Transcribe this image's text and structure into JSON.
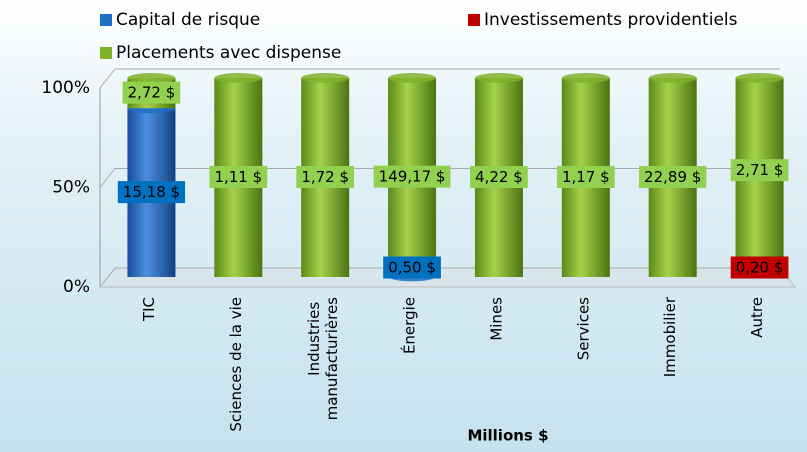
{
  "chart_data": {
    "type": "stacked_percent_bar",
    "x_axis_label": "Millions $",
    "categories": [
      "TIC",
      "Sciences de la vie",
      "Industries manufacturières",
      "Énergie",
      "Mines",
      "Services",
      "Immobilier",
      "Autre"
    ],
    "series": [
      {
        "name": "Capital de risque",
        "color": "#1f6fc5",
        "values": [
          15.18,
          null,
          null,
          0.5,
          null,
          null,
          null,
          null
        ],
        "value_labels": [
          "15,18 $",
          null,
          null,
          "0,50 $",
          null,
          null,
          null,
          null
        ]
      },
      {
        "name": "Investissements providentiels",
        "color": "#c00000",
        "values": [
          null,
          null,
          null,
          null,
          null,
          null,
          null,
          0.2
        ],
        "value_labels": [
          null,
          null,
          null,
          null,
          null,
          null,
          null,
          "0,20 $"
        ]
      },
      {
        "name": "Placements avec dispense",
        "color": "#7fb32a",
        "values": [
          2.72,
          1.11,
          1.72,
          149.17,
          4.22,
          1.17,
          22.89,
          2.71
        ],
        "value_labels": [
          "2,72 $",
          "1,11 $",
          "1,72 $",
          "149,17 $",
          "4,22 $",
          "1,17 $",
          "22,89 $",
          "2,71 $"
        ]
      }
    ],
    "ylim": [
      0,
      100
    ],
    "yticks": [
      {
        "value": 0,
        "label": "0%"
      },
      {
        "value": 50,
        "label": "50%"
      },
      {
        "value": 100,
        "label": "100%"
      }
    ],
    "grid": true
  }
}
